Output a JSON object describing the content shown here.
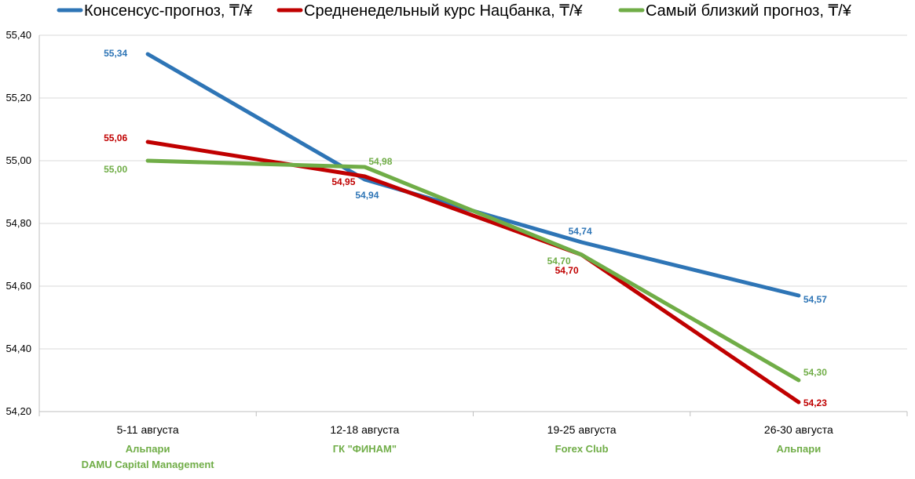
{
  "chart_data": {
    "type": "line",
    "title": "",
    "xlabel": "",
    "ylabel": "",
    "categories": [
      "5-11 августа",
      "12-18 августа",
      "19-25 августа",
      "26-30 августа"
    ],
    "forecasters": [
      [
        "Альпари",
        "DAMU Capital Management"
      ],
      [
        "ГК \"ФИНАМ\""
      ],
      [
        "Forex Club"
      ],
      [
        "Альпари"
      ]
    ],
    "ylim": [
      54.2,
      55.4
    ],
    "yticks": [
      "54,20",
      "54,40",
      "54,60",
      "54,80",
      "55,00",
      "55,20",
      "55,40"
    ],
    "grid": true,
    "legend_position": "top",
    "series": [
      {
        "name": "Консенсус-прогноз, ₸/¥",
        "color": "#2e75b6",
        "values": [
          55.34,
          54.94,
          54.74,
          54.57
        ],
        "labels": [
          "55,34",
          "54,94",
          "54,74",
          "54,57"
        ]
      },
      {
        "name": "Средненедельный курс Нацбанка, ₸/¥",
        "color": "#c00000",
        "values": [
          55.06,
          54.95,
          54.7,
          54.23
        ],
        "labels": [
          "55,06",
          "54,95",
          "54,70",
          "54,23"
        ]
      },
      {
        "name": "Самый близкий прогноз, ₸/¥",
        "color": "#70ad47",
        "values": [
          55.0,
          54.98,
          54.7,
          54.3
        ],
        "labels": [
          "55,00",
          "54,98",
          "54,70",
          "54,30"
        ]
      }
    ],
    "forecaster_color": "#70ad47"
  }
}
